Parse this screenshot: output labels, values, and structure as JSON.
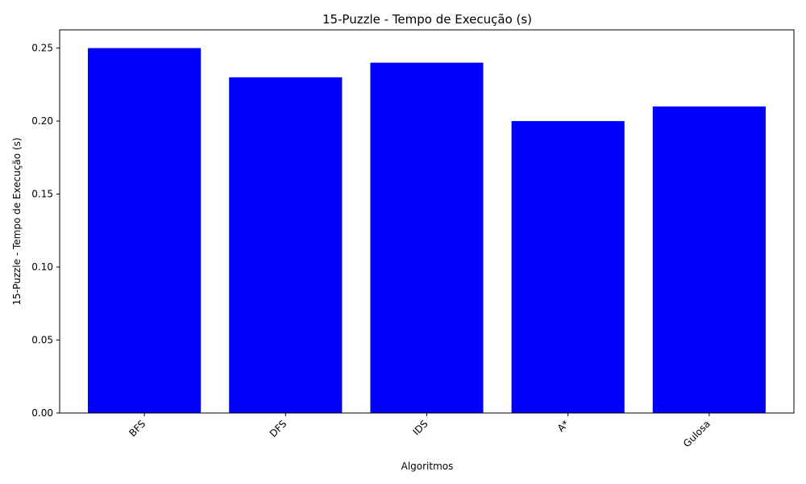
{
  "chart_data": {
    "type": "bar",
    "title": "15-Puzzle - Tempo de Execução (s)",
    "xlabel": "Algoritmos",
    "ylabel": "15-Puzzle - Tempo de Execução (s)",
    "categories": [
      "BFS",
      "DFS",
      "IDS",
      "A*",
      "Gulosa"
    ],
    "values": [
      0.25,
      0.23,
      0.24,
      0.2,
      0.21
    ],
    "ylim": [
      0,
      0.2625
    ],
    "yticks": [
      "0.00",
      "0.05",
      "0.10",
      "0.15",
      "0.20",
      "0.25"
    ],
    "ytick_values": [
      0,
      0.05,
      0.1,
      0.15,
      0.2,
      0.25
    ],
    "bar_color": "#0000ff",
    "grid": false,
    "x_tick_rotation_deg": 45
  }
}
